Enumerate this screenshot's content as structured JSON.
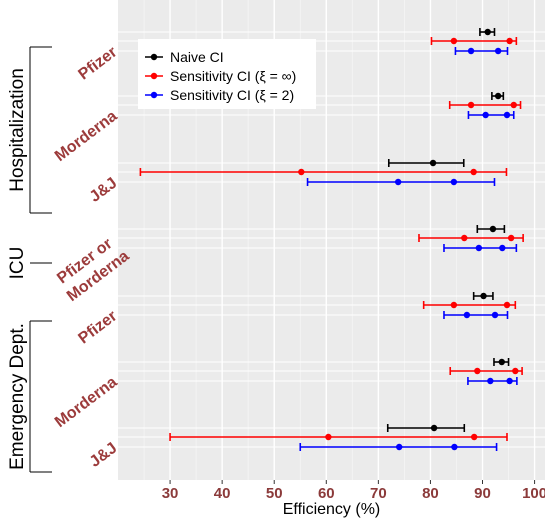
{
  "chart_data": {
    "type": "scatter",
    "subtype": "interval-forest-plot",
    "xlabel": "Efficiency (%)",
    "xlim": [
      20,
      102
    ],
    "x_ticks": [
      30,
      40,
      50,
      60,
      70,
      80,
      90,
      100
    ],
    "grid": true,
    "legend_position": "top-left",
    "colors": {
      "naive": "#000000",
      "sens_inf": "#ff0000",
      "sens_2": "#0000ff",
      "category": "#9c3b3b",
      "panel": "#ebebeb",
      "grid": "#ffffff"
    },
    "legend": [
      {
        "key": "naive",
        "label": "Naive CI"
      },
      {
        "key": "sens_inf",
        "label": "Sensitivity CI (ξ = ∞)"
      },
      {
        "key": "sens_2",
        "label": "Sensitivity CI (ξ = 2)"
      }
    ],
    "groups": [
      {
        "label": "Hospitalization",
        "categories": [
          "Pfizer",
          "Morderna",
          "J&J"
        ]
      },
      {
        "label": "ICU",
        "categories": [
          "Pfizer or Morderna"
        ]
      },
      {
        "label": "Emergency Dept.",
        "categories": [
          "Pfizer",
          "Morderna",
          "J&J"
        ]
      }
    ],
    "rows": [
      {
        "category": "Pfizer",
        "naive": {
          "point": 91,
          "low": 89.5,
          "high": 92.3
        },
        "sens_inf": {
          "points": [
            84.5,
            95.2
          ],
          "low": 80.2,
          "high": 96.5
        },
        "sens_2": {
          "points": [
            87.8,
            93.0
          ],
          "low": 84.8,
          "high": 94.8
        }
      },
      {
        "category": "Morderna",
        "naive": {
          "point": 93,
          "low": 91.8,
          "high": 94.0
        },
        "sens_inf": {
          "points": [
            87.8,
            96.0
          ],
          "low": 83.7,
          "high": 97.3
        },
        "sens_2": {
          "points": [
            90.6,
            94.7
          ],
          "low": 87.3,
          "high": 96.0
        }
      },
      {
        "category": "J&J",
        "naive": {
          "point": 80.5,
          "low": 72.0,
          "high": 86.4
        },
        "sens_inf": {
          "points": [
            55.2,
            88.3
          ],
          "low": 24.3,
          "high": 94.6
        },
        "sens_2": {
          "points": [
            73.8,
            84.5
          ],
          "low": 56.4,
          "high": 92.3
        }
      },
      {
        "category": "Pfizer or Morderna",
        "naive": {
          "point": 92,
          "low": 89.0,
          "high": 94.2
        },
        "sens_inf": {
          "points": [
            86.5,
            95.5
          ],
          "low": 77.8,
          "high": 97.8
        },
        "sens_2": {
          "points": [
            89.3,
            93.8
          ],
          "low": 82.6,
          "high": 96.5
        }
      },
      {
        "category": "Pfizer",
        "naive": {
          "point": 90.2,
          "low": 88.3,
          "high": 92.0
        },
        "sens_inf": {
          "points": [
            84.5,
            94.7
          ],
          "low": 78.7,
          "high": 96.3
        },
        "sens_2": {
          "points": [
            87.0,
            92.4
          ],
          "low": 82.6,
          "high": 94.8
        }
      },
      {
        "category": "Morderna",
        "naive": {
          "point": 93.7,
          "low": 92.2,
          "high": 95.0
        },
        "sens_inf": {
          "points": [
            89.0,
            96.3
          ],
          "low": 83.8,
          "high": 97.6
        },
        "sens_2": {
          "points": [
            91.5,
            95.2
          ],
          "low": 87.2,
          "high": 96.6
        }
      },
      {
        "category": "J&J",
        "naive": {
          "point": 80.7,
          "low": 71.8,
          "high": 86.5
        },
        "sens_inf": {
          "points": [
            60.4,
            88.4
          ],
          "low": 30.0,
          "high": 94.7
        },
        "sens_2": {
          "points": [
            74.0,
            84.6
          ],
          "low": 55.0,
          "high": 92.7
        }
      }
    ]
  }
}
